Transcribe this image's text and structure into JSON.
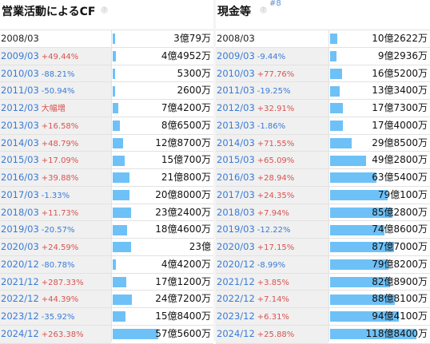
{
  "left": {
    "title": "営業活動によるCF",
    "rows": [
      {
        "date": "2008/03",
        "change": "",
        "value": "3億79万",
        "amount": 3.0079
      },
      {
        "date": "2009/03",
        "change": "+49.44%",
        "value": "4億4952万",
        "amount": 4.4952
      },
      {
        "date": "2010/03",
        "change": "-88.21%",
        "value": "5300万",
        "amount": 0.53
      },
      {
        "date": "2011/03",
        "change": "-50.94%",
        "value": "2600万",
        "amount": 0.26
      },
      {
        "date": "2012/03",
        "change": "大幅増",
        "value": "7億4200万",
        "amount": 7.42
      },
      {
        "date": "2013/03",
        "change": "+16.58%",
        "value": "8億6500万",
        "amount": 8.65
      },
      {
        "date": "2014/03",
        "change": "+48.79%",
        "value": "12億8700万",
        "amount": 12.87
      },
      {
        "date": "2015/03",
        "change": "+17.09%",
        "value": "15億700万",
        "amount": 15.07
      },
      {
        "date": "2016/03",
        "change": "+39.88%",
        "value": "21億800万",
        "amount": 21.08
      },
      {
        "date": "2017/03",
        "change": "-1.33%",
        "value": "20億8000万",
        "amount": 20.8
      },
      {
        "date": "2018/03",
        "change": "+11.73%",
        "value": "23億2400万",
        "amount": 23.24
      },
      {
        "date": "2019/03",
        "change": "-20.57%",
        "value": "18億4600万",
        "amount": 18.46
      },
      {
        "date": "2020/03",
        "change": "+24.59%",
        "value": "23億",
        "amount": 23.0
      },
      {
        "date": "2020/12",
        "change": "-80.78%",
        "value": "4億4200万",
        "amount": 4.42
      },
      {
        "date": "2021/12",
        "change": "+287.33%",
        "value": "17億1200万",
        "amount": 17.12
      },
      {
        "date": "2022/12",
        "change": "+44.39%",
        "value": "24億7200万",
        "amount": 24.72
      },
      {
        "date": "2023/12",
        "change": "-35.92%",
        "value": "15億8400万",
        "amount": 15.84
      },
      {
        "date": "2024/12",
        "change": "+263.38%",
        "value": "57億5600万",
        "amount": 57.56
      }
    ]
  },
  "right": {
    "title": "現金等",
    "ref": "#8",
    "rows": [
      {
        "date": "2008/03",
        "change": "",
        "value": "10億2622万",
        "amount": 10.2622
      },
      {
        "date": "2009/03",
        "change": "-9.44%",
        "value": "9億2936万",
        "amount": 9.2936
      },
      {
        "date": "2010/03",
        "change": "+77.76%",
        "value": "16億5200万",
        "amount": 16.52
      },
      {
        "date": "2011/03",
        "change": "-19.25%",
        "value": "13億3400万",
        "amount": 13.34
      },
      {
        "date": "2012/03",
        "change": "+32.91%",
        "value": "17億7300万",
        "amount": 17.73
      },
      {
        "date": "2013/03",
        "change": "-1.86%",
        "value": "17億4000万",
        "amount": 17.4
      },
      {
        "date": "2014/03",
        "change": "+71.55%",
        "value": "29億8500万",
        "amount": 29.85
      },
      {
        "date": "2015/03",
        "change": "+65.09%",
        "value": "49億2800万",
        "amount": 49.28
      },
      {
        "date": "2016/03",
        "change": "+28.94%",
        "value": "63億5400万",
        "amount": 63.54
      },
      {
        "date": "2017/03",
        "change": "+24.35%",
        "value": "79億100万",
        "amount": 79.01
      },
      {
        "date": "2018/03",
        "change": "+7.94%",
        "value": "85億2800万",
        "amount": 85.28
      },
      {
        "date": "2019/03",
        "change": "-12.22%",
        "value": "74億8600万",
        "amount": 74.86
      },
      {
        "date": "2020/03",
        "change": "+17.15%",
        "value": "87億7000万",
        "amount": 87.7
      },
      {
        "date": "2020/12",
        "change": "-8.99%",
        "value": "79億8200万",
        "amount": 79.82
      },
      {
        "date": "2021/12",
        "change": "+3.85%",
        "value": "82億8900万",
        "amount": 82.89
      },
      {
        "date": "2022/12",
        "change": "+7.14%",
        "value": "88億8100万",
        "amount": 88.81
      },
      {
        "date": "2023/12",
        "change": "+6.31%",
        "value": "94億4100万",
        "amount": 94.41
      },
      {
        "date": "2024/12",
        "change": "+25.88%",
        "value": "118億8400万",
        "amount": 118.84
      }
    ]
  },
  "colors": {
    "bar": "#6ec1f7",
    "positive": "#d9534f",
    "negative": "#3a7bd5",
    "date_link": "#3a7bd5"
  }
}
